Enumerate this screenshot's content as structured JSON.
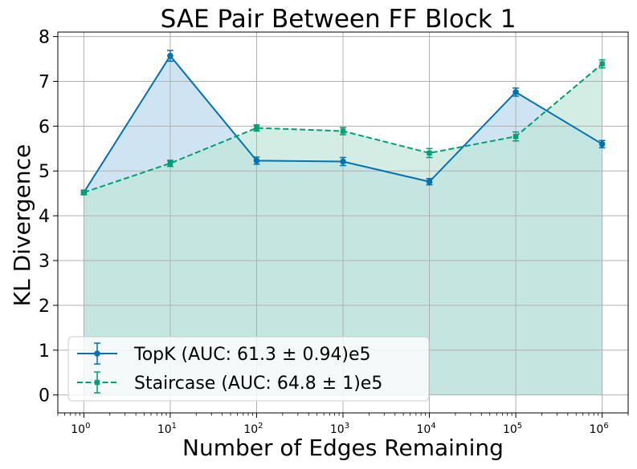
{
  "chart_data": {
    "type": "line",
    "title": "SAE Pair Between FF Block 1",
    "xlabel": "Number of Edges Remaining",
    "ylabel": "KL Divergence",
    "x_scale": "log",
    "x": [
      1,
      10,
      100,
      1000,
      10000,
      100000,
      1000000
    ],
    "xlim": [
      0.5,
      2000000
    ],
    "ylim": [
      -0.4,
      8.1
    ],
    "x_tick_labels": [
      {
        "base": "10",
        "exp": "0"
      },
      {
        "base": "10",
        "exp": "1"
      },
      {
        "base": "10",
        "exp": "2"
      },
      {
        "base": "10",
        "exp": "3"
      },
      {
        "base": "10",
        "exp": "4"
      },
      {
        "base": "10",
        "exp": "5"
      },
      {
        "base": "10",
        "exp": "6"
      }
    ],
    "y_ticks": [
      0,
      1,
      2,
      3,
      4,
      5,
      6,
      7,
      8
    ],
    "y_tick_labels": [
      "0",
      "1",
      "2",
      "3",
      "4",
      "5",
      "6",
      "7",
      "8"
    ],
    "grid": true,
    "legend_position": "bottom-left",
    "series": [
      {
        "name": "TopK (AUC: 61.3 ± 0.94)e5",
        "values": [
          4.52,
          7.57,
          5.23,
          5.21,
          4.76,
          6.76,
          5.6
        ],
        "errors": [
          0.05,
          0.12,
          0.08,
          0.09,
          0.07,
          0.09,
          0.08
        ],
        "color": "#0072b2",
        "fill": "#c5dff0",
        "linestyle": "solid",
        "marker": "circle"
      },
      {
        "name": "Staircase (AUC: 64.8 ± 1)e5",
        "values": [
          4.52,
          5.17,
          5.96,
          5.89,
          5.4,
          5.77,
          7.39
        ],
        "errors": [
          0.05,
          0.07,
          0.07,
          0.08,
          0.1,
          0.1,
          0.09
        ],
        "color": "#009e73",
        "fill": "#c0e6d9",
        "linestyle": "dashed",
        "marker": "square"
      }
    ]
  }
}
